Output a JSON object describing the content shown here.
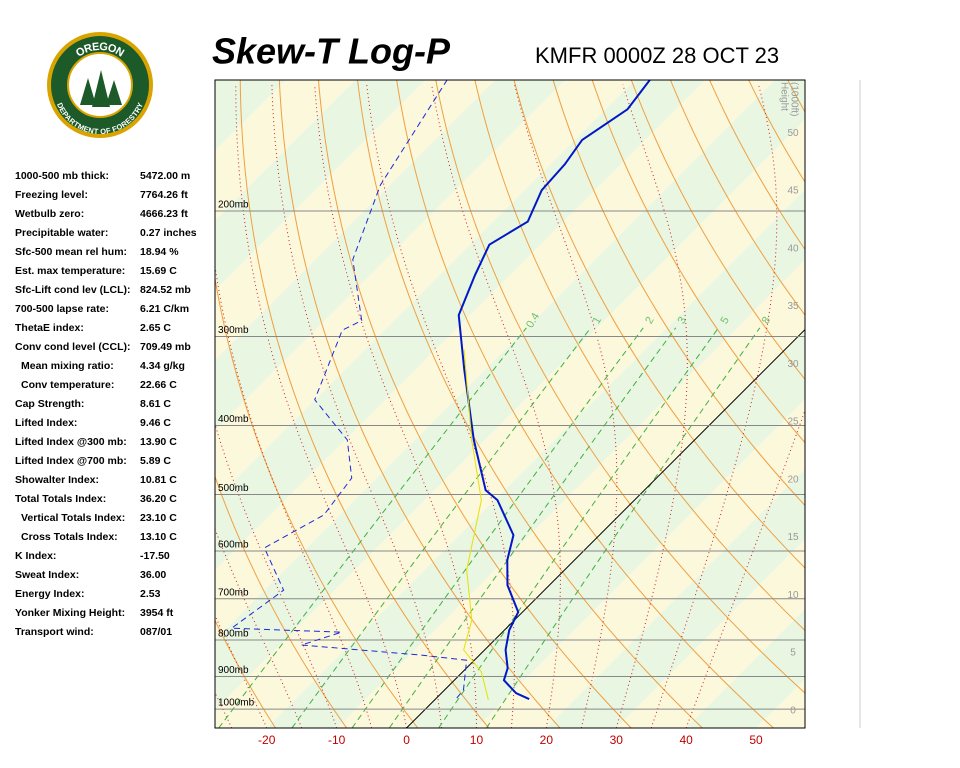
{
  "header": {
    "logo_top": "OREGON",
    "logo_bottom": "DEPARTMENT OF FORESTRY",
    "title": "Skew-T Log-P",
    "station": "KMFR 0000Z 28 OCT 23"
  },
  "indices": [
    [
      "1000-500 mb thick:",
      "5472.00 m"
    ],
    [
      "Freezing level:",
      "7764.26 ft"
    ],
    [
      "Wetbulb zero:",
      "4666.23 ft"
    ],
    [
      "Precipitable water:",
      "0.27 inches"
    ],
    [
      "Sfc-500 mean rel hum:",
      "18.94 %"
    ],
    [
      "Est. max temperature:",
      "15.69 C"
    ],
    [
      "Sfc-Lift cond lev (LCL):",
      "824.52 mb"
    ],
    [
      "700-500 lapse rate:",
      "6.21 C/km"
    ],
    [
      "ThetaE index:",
      "2.65 C"
    ],
    [
      "Conv cond level (CCL):",
      "709.49 mb"
    ],
    [
      "Mean mixing ratio:",
      "4.34 g/kg"
    ],
    [
      "Conv temperature:",
      "22.66 C"
    ],
    [
      "Cap Strength:",
      "8.61 C"
    ],
    [
      "Lifted Index:",
      "9.46 C"
    ],
    [
      "Lifted Index @300 mb:",
      "13.90 C"
    ],
    [
      "Lifted Index @700 mb:",
      "5.89 C"
    ],
    [
      "Showalter Index:",
      "10.81 C"
    ],
    [
      "Total Totals Index:",
      "36.20 C"
    ],
    [
      "Vertical Totals Index:",
      "23.10 C"
    ],
    [
      "Cross Totals Index:",
      "13.10 C"
    ],
    [
      "K Index:",
      "-17.50"
    ],
    [
      "Sweat Index:",
      "36.00"
    ],
    [
      "Energy Index:",
      "2.53"
    ],
    [
      "Yonker Mixing Height:",
      "3954 ft"
    ],
    [
      "Transport wind:",
      "087/01"
    ]
  ],
  "chart_data": {
    "type": "skew-t",
    "xlim": [
      -27.4,
      57
    ],
    "xticks": [
      -20,
      -10,
      0,
      10,
      20,
      30,
      40,
      50
    ],
    "ylim": [
      1063,
      131
    ],
    "log_y": true,
    "yticks": [
      {
        "value": 200,
        "label": "200mb"
      },
      {
        "value": 300,
        "label": "300mb"
      },
      {
        "value": 400,
        "label": "400mb"
      },
      {
        "value": 500,
        "label": "500mb"
      },
      {
        "value": 600,
        "label": "600mb"
      },
      {
        "value": 700,
        "label": "700mb"
      },
      {
        "value": 800,
        "label": "800mb"
      },
      {
        "value": 900,
        "label": "900mb"
      },
      {
        "value": 1000,
        "label": "1000mb"
      }
    ],
    "y2_label": [
      "Height",
      "(1000ft)"
    ],
    "y2lim": [
      -1.5,
      54.6
    ],
    "y2ticks": [
      0,
      5,
      10,
      15,
      20,
      25,
      30,
      35,
      40,
      45,
      50
    ],
    "mixing_ratio_lines": [
      0.4,
      1,
      2,
      3,
      5,
      8
    ],
    "series": [
      {
        "color": "#0018c8",
        "dash": false,
        "width": 2,
        "x": [
          13.4,
          10.7,
          7.1,
          5.9,
          3.0,
          0.7,
          -0.6,
          -6.0,
          -9.6,
          -12.3,
          -19.6,
          -22.7,
          -31.6,
          -43.0,
          -51.6,
          -55.0,
          -57.3,
          -55.1,
          -57.6,
          -58.0,
          -59.0,
          -56.9,
          -57.9
        ],
        "values": [
          968,
          950,
          911,
          876,
          826,
          775,
          731,
          670,
          618,
          570,
          509,
          493,
          419,
          334,
          280,
          246,
          223,
          207,
          187,
          172,
          159,
          144,
          131
        ]
      },
      {
        "color": "#1e28d8",
        "dash": true,
        "width": 1,
        "x": [
          2.9,
          2.7,
          -1.1,
          -8.3,
          -26.9,
          -23.0,
          -39.3,
          -37.3,
          -46.1,
          -42.3,
          -43.6,
          -49.7,
          -60.1,
          -66.1,
          -64.7,
          -74.7,
          -81.4,
          -86.9
        ],
        "values": [
          965,
          940,
          854,
          840,
          813,
          780,
          770,
          681,
          594,
          534,
          474,
          419,
          368,
          294,
          285,
          234,
          184,
          131
        ]
      },
      {
        "color": "#e8e000",
        "dash": false,
        "width": 1,
        "x": [
          7.7,
          2.7,
          -3.0,
          -6.1,
          -14.0,
          -21.9,
          -31.9,
          -45.9
        ],
        "values": [
          971,
          887,
          826,
          750,
          638,
          509,
          419,
          313
        ]
      }
    ]
  }
}
